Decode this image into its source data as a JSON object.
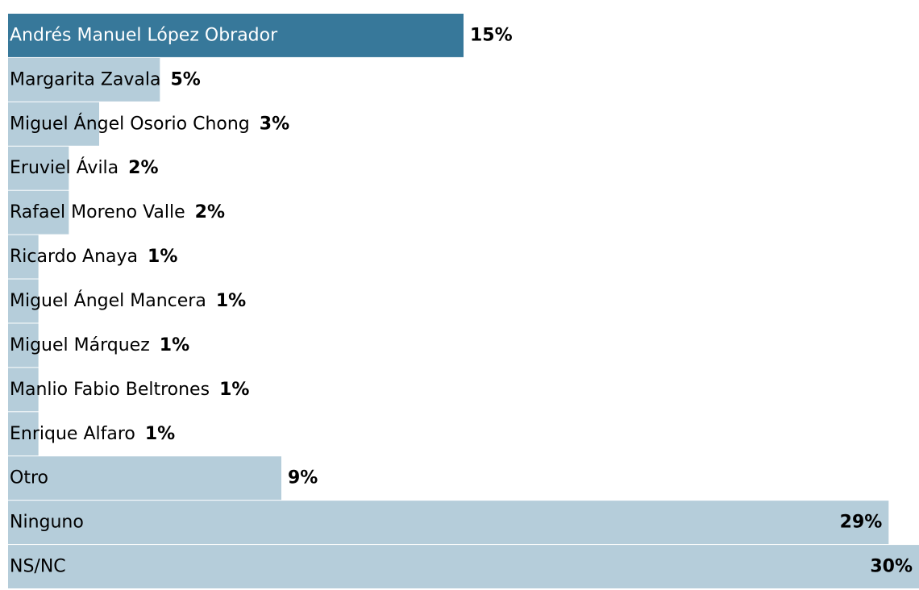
{
  "chart_data": {
    "type": "hbar",
    "categories": [
      "Andrés Manuel López Obrador",
      "Margarita Zavala",
      "Miguel Ángel Osorio Chong",
      "Eruviel Ávila",
      "Rafael Moreno Valle",
      "Ricardo Anaya",
      "Miguel Ángel Mancera",
      "Miguel Márquez",
      "Manlio Fabio Beltrones",
      "Enrique Alfaro",
      "Otro",
      "Ninguno",
      "NS/NC"
    ],
    "values": [
      15,
      5,
      3,
      2,
      2,
      1,
      1,
      1,
      1,
      1,
      9,
      29,
      30
    ],
    "value_labels": [
      "15%",
      "5%",
      "3%",
      "2%",
      "2%",
      "1%",
      "1%",
      "1%",
      "1%",
      "1%",
      "9%",
      "29%",
      "30%"
    ],
    "colors": [
      "#37789a",
      "#b5cdda",
      "#b5cdda",
      "#b5cdda",
      "#b5cdda",
      "#b5cdda",
      "#b5cdda",
      "#b5cdda",
      "#b5cdda",
      "#b5cdda",
      "#b5cdda",
      "#b5cdda",
      "#b5cdda"
    ],
    "xlim": [
      0,
      30
    ]
  }
}
